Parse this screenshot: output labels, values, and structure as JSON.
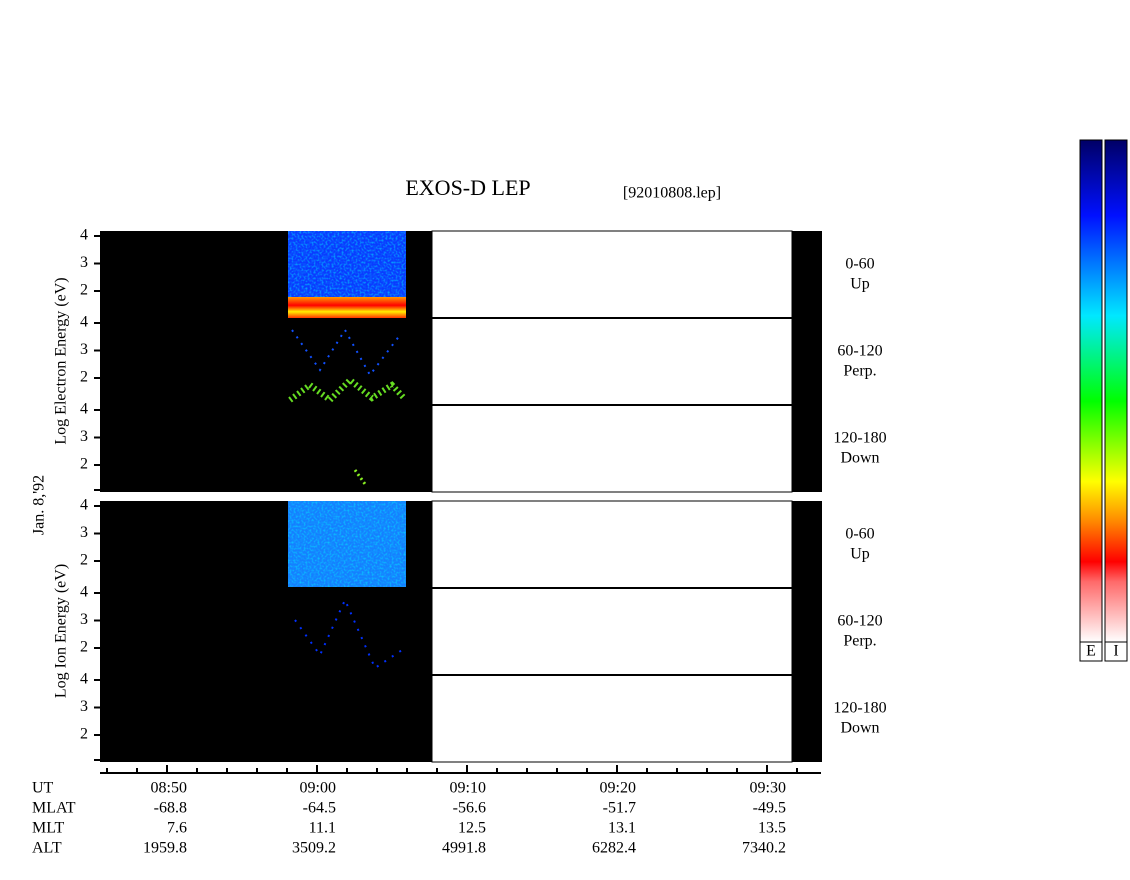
{
  "header": {
    "title": "EXOS-D LEP",
    "file": "[92010808.lep]"
  },
  "date": "Jan. 8,'92",
  "panels": [
    {
      "ylabel": "Log Electron Energy (eV)",
      "yticks": [
        4,
        3,
        2
      ],
      "subpanels": [
        {
          "range": "0-60",
          "direction": "Up"
        },
        {
          "range": "60-120",
          "direction": "Perp."
        },
        {
          "range": "120-180",
          "direction": "Down"
        }
      ]
    },
    {
      "ylabel": "Log Ion Energy (eV)",
      "yticks": [
        4,
        3,
        2
      ],
      "subpanels": [
        {
          "range": "0-60",
          "direction": "Up"
        },
        {
          "range": "60-120",
          "direction": "Perp."
        },
        {
          "range": "120-180",
          "direction": "Down"
        }
      ]
    }
  ],
  "ephemeris": {
    "rows": [
      {
        "label": "UT",
        "values": [
          "08:50",
          "09:00",
          "09:10",
          "09:20",
          "09:30"
        ]
      },
      {
        "label": "MLAT",
        "values": [
          -68.8,
          -64.5,
          -56.6,
          -51.7,
          -49.5
        ]
      },
      {
        "label": "MLT",
        "values": [
          7.6,
          11.1,
          12.5,
          13.1,
          13.5
        ]
      },
      {
        "label": "ALT",
        "values": [
          1959.8,
          3509.2,
          4991.8,
          6282.4,
          7340.2
        ]
      }
    ]
  },
  "colorbar_labels": [
    "E",
    "I"
  ]
}
